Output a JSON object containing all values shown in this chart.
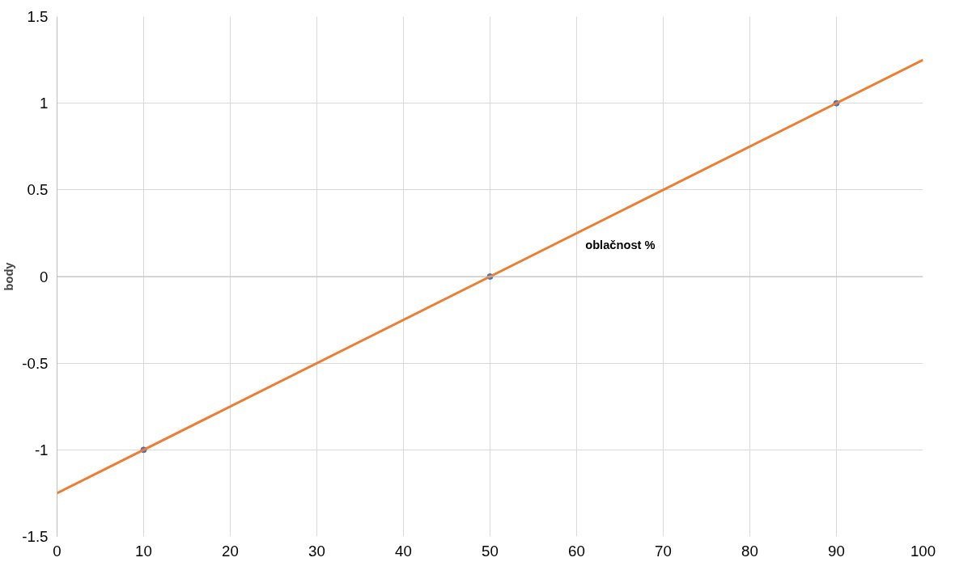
{
  "chart_data": {
    "type": "scatter",
    "xlabel": "oblačnost %",
    "ylabel": "body",
    "xlim": [
      0,
      100
    ],
    "ylim": [
      -1.5,
      1.5
    ],
    "xticks": [
      0,
      10,
      20,
      30,
      40,
      50,
      60,
      70,
      80,
      90,
      100
    ],
    "yticks": [
      -1.5,
      -1,
      -0.5,
      0,
      0.5,
      1,
      1.5
    ],
    "grid": true,
    "marker": "circle",
    "series": [
      {
        "color": "#4472c4",
        "x": [
          10,
          50,
          90
        ],
        "values": [
          -1,
          0,
          1
        ]
      },
      {
        "type": "line",
        "color": "#ed7d31",
        "x": [
          0,
          100
        ],
        "values": [
          -1.25,
          1.25
        ],
        "marker": "none"
      }
    ]
  }
}
